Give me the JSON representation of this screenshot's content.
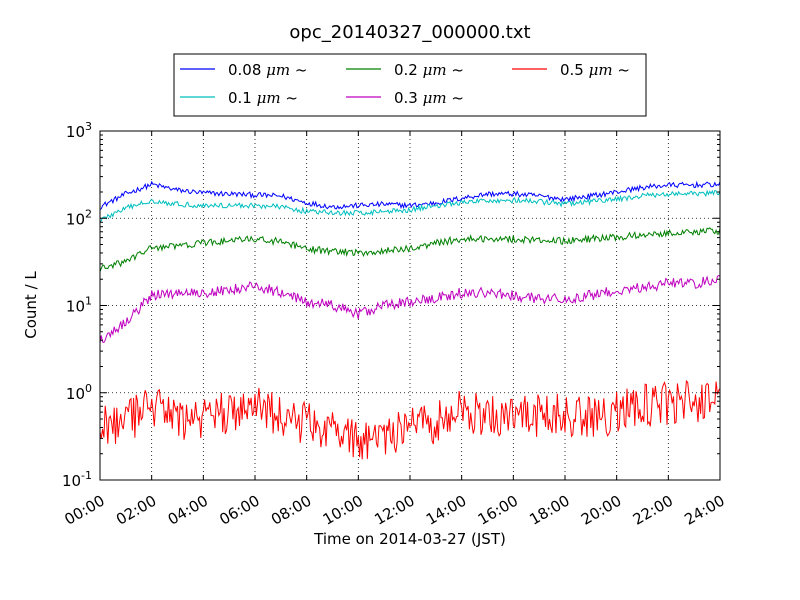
{
  "chart_data": {
    "type": "line",
    "title": "opc_20140327_000000.txt",
    "xlabel": "Time on 2014-03-27 (JST)",
    "ylabel": "Count / L",
    "xlim": [
      "00:00",
      "24:00"
    ],
    "ylim": [
      0.1,
      1000
    ],
    "yscale": "log",
    "grid": true,
    "legend_position": "top-center",
    "x_ticks": [
      "00:00",
      "02:00",
      "04:00",
      "06:00",
      "08:00",
      "10:00",
      "12:00",
      "14:00",
      "16:00",
      "18:00",
      "20:00",
      "22:00",
      "24:00"
    ],
    "y_ticks": [
      {
        "value": 0.1,
        "base": "10",
        "exp": "-1"
      },
      {
        "value": 1,
        "base": "10",
        "exp": "0"
      },
      {
        "value": 10,
        "base": "10",
        "exp": "1"
      },
      {
        "value": 100,
        "base": "10",
        "exp": "2"
      },
      {
        "value": 1000,
        "base": "10",
        "exp": "3"
      }
    ],
    "x": [
      "00:00",
      "01:00",
      "02:00",
      "03:00",
      "04:00",
      "05:00",
      "06:00",
      "07:00",
      "08:00",
      "09:00",
      "10:00",
      "11:00",
      "12:00",
      "13:00",
      "14:00",
      "15:00",
      "16:00",
      "17:00",
      "18:00",
      "19:00",
      "20:00",
      "21:00",
      "22:00",
      "23:00",
      "24:00"
    ],
    "series": [
      {
        "name": "0.08 μm ~",
        "label_text": "0.08",
        "color": "#0000ff",
        "noise": 0.03,
        "values": [
          135,
          190,
          245,
          210,
          195,
          190,
          185,
          180,
          150,
          135,
          140,
          145,
          140,
          150,
          170,
          190,
          190,
          180,
          165,
          180,
          200,
          225,
          240,
          240,
          245
        ]
      },
      {
        "name": "0.1 μm ~",
        "label_text": "0.1",
        "color": "#00bfbf",
        "noise": 0.03,
        "values": [
          95,
          130,
          160,
          145,
          140,
          140,
          140,
          135,
          120,
          115,
          115,
          120,
          125,
          140,
          150,
          160,
          160,
          155,
          145,
          155,
          165,
          180,
          190,
          190,
          195
        ]
      },
      {
        "name": "0.2 μm ~",
        "label_text": "0.2",
        "color": "#008000",
        "noise": 0.04,
        "values": [
          26,
          32,
          46,
          48,
          52,
          55,
          58,
          54,
          44,
          42,
          40,
          42,
          45,
          52,
          58,
          58,
          58,
          56,
          55,
          58,
          60,
          65,
          68,
          70,
          72
        ]
      },
      {
        "name": "0.3 μm ~",
        "label_text": "0.3",
        "color": "#bf00bf",
        "noise": 0.06,
        "values": [
          4.0,
          6.5,
          13,
          14,
          14,
          15,
          17,
          14,
          11,
          10,
          8,
          10,
          11,
          12,
          14,
          14,
          13,
          12,
          12,
          13,
          15,
          16,
          18,
          18,
          20
        ]
      },
      {
        "name": "0.5 μm ~",
        "label_text": "0.5",
        "color": "#ff0000",
        "noise": 0.25,
        "values": [
          0.45,
          0.45,
          0.7,
          0.5,
          0.5,
          0.6,
          0.7,
          0.55,
          0.45,
          0.4,
          0.28,
          0.32,
          0.4,
          0.45,
          0.65,
          0.55,
          0.5,
          0.55,
          0.55,
          0.5,
          0.6,
          0.7,
          0.75,
          0.8,
          0.85
        ]
      }
    ],
    "legend_unit": "μm",
    "legend_suffix": "~"
  }
}
